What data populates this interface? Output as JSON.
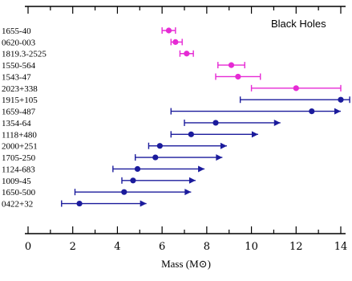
{
  "chart_data": {
    "type": "errorbar",
    "title": "Black Holes",
    "xlabel": "Mass (M⊙)",
    "xlim": [
      -0.2,
      14.25
    ],
    "xticks": [
      0,
      2,
      4,
      6,
      8,
      10,
      12,
      14
    ],
    "colors": {
      "pink": "#e62ad4",
      "blue": "#1b1b9c"
    },
    "series": [
      {
        "name": "1655-40",
        "value": 6.3,
        "low": 6.0,
        "high": 6.6,
        "color": "pink",
        "type": "range"
      },
      {
        "name": "0620-003",
        "value": 6.6,
        "low": 6.4,
        "high": 6.9,
        "color": "pink",
        "type": "range"
      },
      {
        "name": "1819.3-2525",
        "value": 7.1,
        "low": 6.8,
        "high": 7.4,
        "color": "pink",
        "type": "range"
      },
      {
        "name": "1550-564",
        "value": 9.1,
        "low": 8.5,
        "high": 9.7,
        "color": "pink",
        "type": "range"
      },
      {
        "name": "1543-47",
        "value": 9.4,
        "low": 8.4,
        "high": 10.4,
        "color": "pink",
        "type": "range"
      },
      {
        "name": "2023+338",
        "value": 12.0,
        "low": 10.0,
        "high": 14.0,
        "color": "pink",
        "type": "range"
      },
      {
        "name": "1915+105",
        "value": 14.0,
        "low": 9.5,
        "high": 14.4,
        "color": "blue",
        "type": "range"
      },
      {
        "name": "1659-487",
        "value": 12.7,
        "low": 6.4,
        "high": 14.0,
        "color": "blue",
        "type": "lower_limit"
      },
      {
        "name": "1354-64",
        "value": 8.4,
        "low": 7.0,
        "high": 11.3,
        "color": "blue",
        "type": "lower_limit"
      },
      {
        "name": "1118+480",
        "value": 7.3,
        "low": 6.4,
        "high": 10.3,
        "color": "blue",
        "type": "lower_limit"
      },
      {
        "name": "2000+251",
        "value": 5.9,
        "low": 5.4,
        "high": 8.9,
        "color": "blue",
        "type": "lower_limit"
      },
      {
        "name": "1705-250",
        "value": 5.7,
        "low": 4.8,
        "high": 8.7,
        "color": "blue",
        "type": "lower_limit"
      },
      {
        "name": "1124-683",
        "value": 4.9,
        "low": 3.8,
        "high": 7.9,
        "color": "blue",
        "type": "lower_limit"
      },
      {
        "name": "1009-45",
        "value": 4.7,
        "low": 4.2,
        "high": 7.5,
        "color": "blue",
        "type": "lower_limit"
      },
      {
        "name": "1650-500",
        "value": 4.3,
        "low": 2.1,
        "high": 7.3,
        "color": "blue",
        "type": "lower_limit"
      },
      {
        "name": "0422+32",
        "value": 2.3,
        "low": 1.5,
        "high": 5.3,
        "color": "blue",
        "type": "lower_limit"
      }
    ]
  }
}
